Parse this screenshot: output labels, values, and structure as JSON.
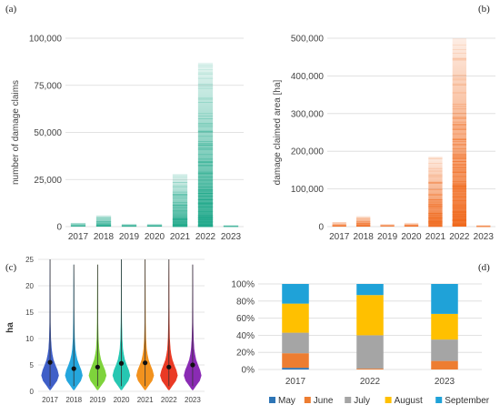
{
  "chart_data": [
    {
      "panel": "(a)",
      "type": "bar",
      "categories": [
        "2017",
        "2018",
        "2019",
        "2020",
        "2021",
        "2022",
        "2023"
      ],
      "values": [
        2000,
        6000,
        1500,
        1500,
        28000,
        87000,
        800
      ],
      "ylabel": "number of damage claims",
      "ylim": [
        0,
        100000
      ],
      "yticks": [
        "0",
        "25,000",
        "50,000",
        "75,000",
        "100,000"
      ],
      "grid": true,
      "color": "#1fa88a"
    },
    {
      "panel": "(b)",
      "type": "bar",
      "categories": [
        "2017",
        "2018",
        "2019",
        "2020",
        "2021",
        "2022",
        "2023"
      ],
      "values": [
        12000,
        28000,
        6000,
        10000,
        185000,
        500000,
        4000
      ],
      "ylabel": "damage claimed area [ha]",
      "ylim": [
        0,
        500000
      ],
      "yticks": [
        "0",
        "100,000",
        "200,000",
        "300,000",
        "400,000",
        "500,000"
      ],
      "grid": true,
      "color": "#f06a1e"
    },
    {
      "panel": "(c)",
      "type": "violin",
      "categories": [
        "2017",
        "2018",
        "2019",
        "2020",
        "2021",
        "2022",
        "2023"
      ],
      "means": [
        5.5,
        4.3,
        4.6,
        5.3,
        5.4,
        4.6,
        5.0
      ],
      "max": [
        25,
        24,
        24,
        25,
        25,
        25,
        24
      ],
      "ylabel": "ha",
      "ylim": [
        0,
        25
      ],
      "yticks": [
        "0",
        "5",
        "10",
        "15",
        "20",
        "25"
      ],
      "grid": true,
      "colors": [
        "#3f5fc8",
        "#24a6dd",
        "#7ed33b",
        "#27c7b2",
        "#f2921e",
        "#ea3a25",
        "#8a2bb4"
      ]
    },
    {
      "panel": "(d)",
      "type": "bar",
      "stacked": true,
      "percent": true,
      "categories": [
        "2017",
        "2022",
        "2023"
      ],
      "series": [
        {
          "name": "May",
          "values": [
            2,
            0,
            0
          ],
          "color": "#2e75b6"
        },
        {
          "name": "June",
          "values": [
            17,
            1,
            10
          ],
          "color": "#ed7d31"
        },
        {
          "name": "July",
          "values": [
            24,
            39,
            25
          ],
          "color": "#a5a5a5"
        },
        {
          "name": "August",
          "values": [
            34,
            47,
            30
          ],
          "color": "#ffc000"
        },
        {
          "name": "September",
          "values": [
            23,
            13,
            35
          ],
          "color": "#1fa2d8"
        }
      ],
      "ylim": [
        0,
        100
      ],
      "yticks": [
        "0%",
        "20%",
        "40%",
        "60%",
        "80%",
        "100%"
      ],
      "grid": true,
      "legend": "bottom"
    }
  ]
}
